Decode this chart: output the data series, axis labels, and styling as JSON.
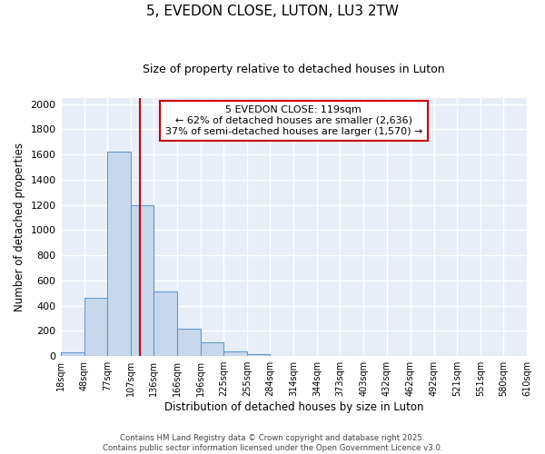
{
  "title": "5, EVEDON CLOSE, LUTON, LU3 2TW",
  "subtitle": "Size of property relative to detached houses in Luton",
  "xlabel": "Distribution of detached houses by size in Luton",
  "ylabel": "Number of detached properties",
  "bin_edges": [
    18,
    48,
    77,
    107,
    136,
    166,
    196,
    225,
    255,
    284,
    314,
    344,
    373,
    403,
    432,
    462,
    492,
    521,
    551,
    580,
    610
  ],
  "bar_heights": [
    30,
    460,
    1620,
    1200,
    510,
    220,
    110,
    40,
    15,
    0,
    0,
    0,
    0,
    0,
    0,
    0,
    0,
    0,
    0,
    0
  ],
  "bar_color": "#c8d8ec",
  "bar_edge_color": "#6699cc",
  "property_size": 119,
  "vline_color": "#cc0000",
  "annotation_text": "5 EVEDON CLOSE: 119sqm\n← 62% of detached houses are smaller (2,636)\n37% of semi-detached houses are larger (1,570) →",
  "annotation_box_color": "#cc0000",
  "ylim": [
    0,
    2050
  ],
  "yticks": [
    0,
    200,
    400,
    600,
    800,
    1000,
    1200,
    1400,
    1600,
    1800,
    2000
  ],
  "background_color": "#e8eef8",
  "grid_color": "#ffffff",
  "footer_line1": "Contains HM Land Registry data © Crown copyright and database right 2025.",
  "footer_line2": "Contains public sector information licensed under the Open Government Licence v3.0."
}
